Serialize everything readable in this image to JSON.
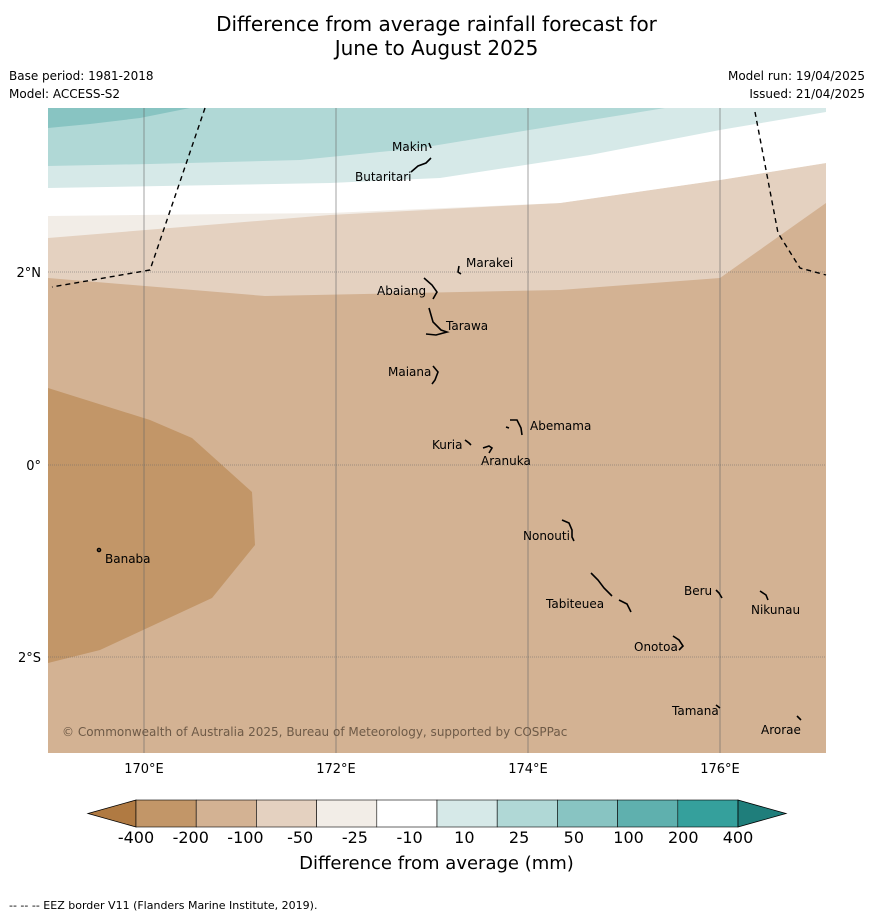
{
  "title_line1": "Difference from average rainfall forecast for",
  "title_line2": "June to August 2025",
  "base_period": "Base period: 1981-2018",
  "model": "Model: ACCESS-S2",
  "model_run": "Model run: 19/04/2025",
  "issued": "Issued: 21/04/2025",
  "copyright": "© Commonwealth of Australia 2025, Bureau of Meteorology, supported by COSPPac",
  "lat_labels": [
    "2°N",
    "0°",
    "2°S"
  ],
  "lon_labels": [
    "170°E",
    "172°E",
    "174°E",
    "176°E"
  ],
  "islands": [
    "Makin",
    "Butaritari",
    "Marakei",
    "Abaiang",
    "Tarawa",
    "Maiana",
    "Abemama",
    "Kuria",
    "Aranuka",
    "Banaba",
    "Nonouti",
    "Tabiteuea",
    "Beru",
    "Nikunau",
    "Onotoa",
    "Tamana",
    "Arorae"
  ],
  "colorbar": {
    "ticks": [
      "-400",
      "-200",
      "-100",
      "-50",
      "-25",
      "-10",
      "10",
      "25",
      "50",
      "100",
      "200",
      "400"
    ],
    "colors": [
      "#b07a42",
      "#c29668",
      "#d3b293",
      "#e4d1c0",
      "#f2ede7",
      "#ffffff",
      "#d6e9e8",
      "#b0d8d6",
      "#88c4c2",
      "#5fb0ae",
      "#35a09c",
      "#1f7e7b"
    ],
    "title": "Difference from average (mm)"
  },
  "footnote": "-- -- -- EEZ border V11 (Flanders Marine Institute, 2019)."
}
